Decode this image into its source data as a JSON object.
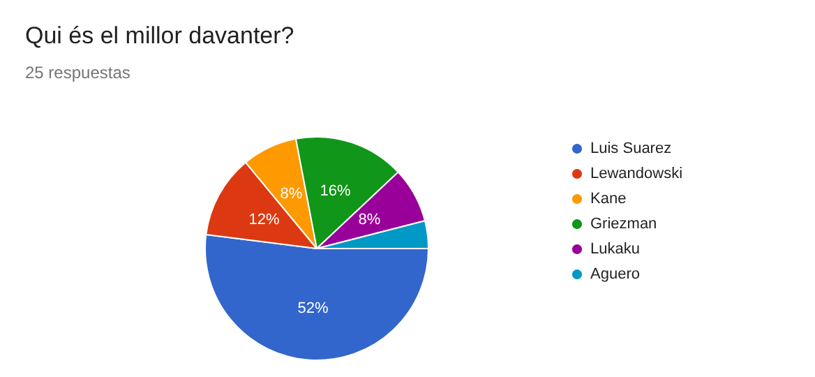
{
  "chart_data": {
    "type": "pie",
    "title": "Qui és el millor davanter?",
    "subtitle": "25 respuestas",
    "categories": [
      "Luis Suarez",
      "Lewandowski",
      "Kane",
      "Griezman",
      "Lukaku",
      "Aguero"
    ],
    "values": [
      52,
      12,
      8,
      16,
      8,
      4
    ],
    "colors": [
      "#3366cc",
      "#dc3912",
      "#ff9900",
      "#109618",
      "#990099",
      "#0099c6"
    ],
    "value_labels": [
      "52%",
      "12%",
      "8%",
      "16%",
      "8%",
      null
    ],
    "legend": "right"
  }
}
